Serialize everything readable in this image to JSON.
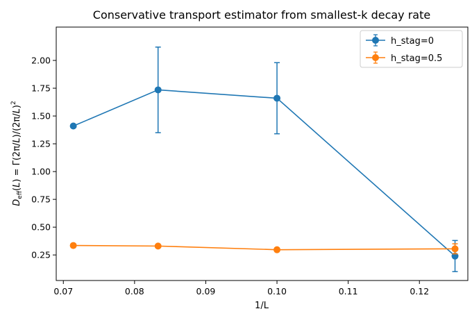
{
  "chart_data": {
    "type": "line",
    "title": "Conservative transport estimator from smallest-k decay rate",
    "xlabel": "1/L",
    "ylabel": "D_eff(L) = Γ(2π/L)/(2π/L)²",
    "xlim": [
      0.069,
      0.1268
    ],
    "ylim": [
      0.02,
      2.3
    ],
    "xticks": [
      0.07,
      0.08,
      0.09,
      0.1,
      0.11,
      0.12
    ],
    "xtick_labels": [
      "0.07",
      "0.08",
      "0.09",
      "0.10",
      "0.11",
      "0.12"
    ],
    "yticks": [
      0.25,
      0.5,
      0.75,
      1.0,
      1.25,
      1.5,
      1.75,
      2.0
    ],
    "ytick_labels": [
      "0.25",
      "0.50",
      "0.75",
      "1.00",
      "1.25",
      "1.50",
      "1.75",
      "2.00"
    ],
    "legend_position": "top-right",
    "series": [
      {
        "name": "h_stag=0",
        "color": "#1f77b4",
        "x": [
          0.0714,
          0.0833,
          0.1,
          0.125
        ],
        "y": [
          1.41,
          1.735,
          1.66,
          0.24
        ],
        "yerr": [
          0.0,
          0.385,
          0.32,
          0.14
        ]
      },
      {
        "name": "h_stag=0.5",
        "color": "#ff7f0e",
        "x": [
          0.0714,
          0.0833,
          0.1,
          0.125
        ],
        "y": [
          0.335,
          0.33,
          0.297,
          0.305
        ],
        "yerr": [
          0.0,
          0.0,
          0.0,
          0.045
        ]
      }
    ]
  }
}
